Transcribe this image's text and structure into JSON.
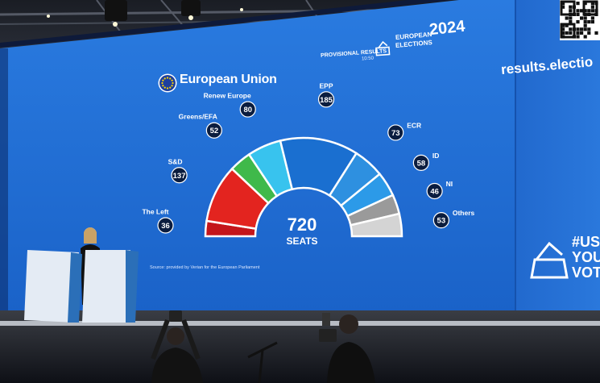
{
  "brand": {
    "name": "European Union"
  },
  "header": {
    "provisional": "PROVISIONAL RESULTS",
    "time": "10:50",
    "title_line1": "EUROPEAN",
    "title_line2": "ELECTIONS",
    "year": "2024"
  },
  "side_screen": {
    "url": "results.electio",
    "hashtag_line1": "#US",
    "hashtag_line2": "YOU",
    "hashtag_line3": "VOT"
  },
  "total": {
    "value": "720",
    "label": "SEATS"
  },
  "source": "Source: provided by Verian for the European Parliament",
  "colors": {
    "screen": "#1e6fd6",
    "EPP": "#1a6fd0",
    "S&D": "#e3241f",
    "Renew Europe": "#38c3ee",
    "Greens/EFA": "#3fb94a",
    "ECR": "#2e90e0",
    "ID": "#2c9ae8",
    "The Left": "#c4161b",
    "NI": "#9a9a9a",
    "Others": "#d4d4d4"
  },
  "chart_data": {
    "type": "hemicycle",
    "total": 720,
    "groups": [
      {
        "name": "The Left",
        "seats": 36
      },
      {
        "name": "S&D",
        "seats": 137
      },
      {
        "name": "Greens/EFA",
        "seats": 52
      },
      {
        "name": "Renew Europe",
        "seats": 80
      },
      {
        "name": "EPP",
        "seats": 185
      },
      {
        "name": "ECR",
        "seats": 73
      },
      {
        "name": "ID",
        "seats": 58
      },
      {
        "name": "NI",
        "seats": 46
      },
      {
        "name": "Others",
        "seats": 53
      }
    ]
  }
}
